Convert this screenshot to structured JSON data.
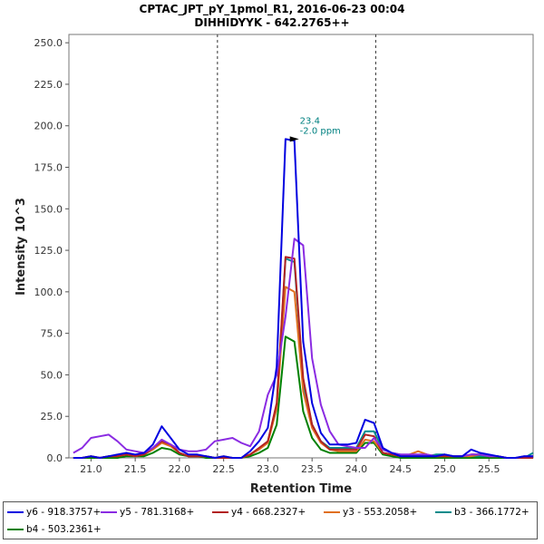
{
  "chart_data": {
    "type": "line",
    "title": "CPTAC_JPT_pY_1pmol_R1, 2016-06-23 00:04",
    "subtitle": "DIHHIDYYK - 642.2765++",
    "xlabel": "Retention Time",
    "ylabel": "Intensity 10^3",
    "xlim": [
      20.75,
      26.0
    ],
    "ylim": [
      0,
      255
    ],
    "x_ticks": [
      "21.0",
      "21.5",
      "22.0",
      "22.5",
      "23.0",
      "23.5",
      "24.0",
      "24.5",
      "25.0",
      "25.5"
    ],
    "y_ticks": [
      "0.0",
      "25.0",
      "50.0",
      "75.0",
      "100.0",
      "125.0",
      "150.0",
      "175.0",
      "200.0",
      "225.0",
      "250.0"
    ],
    "boundaries": [
      22.43,
      24.22
    ],
    "peak_annotation": {
      "x": 23.3,
      "y": 192,
      "label_rt": "23.4",
      "label_ppm": "-2.0 ppm"
    },
    "x": [
      20.8,
      20.9,
      21.0,
      21.1,
      21.2,
      21.3,
      21.4,
      21.5,
      21.6,
      21.7,
      21.8,
      21.9,
      22.0,
      22.1,
      22.2,
      22.3,
      22.4,
      22.5,
      22.6,
      22.7,
      22.8,
      22.9,
      23.0,
      23.1,
      23.2,
      23.3,
      23.4,
      23.5,
      23.6,
      23.7,
      23.8,
      23.9,
      24.0,
      24.1,
      24.2,
      24.3,
      24.4,
      24.5,
      24.6,
      24.7,
      24.8,
      24.9,
      25.0,
      25.1,
      25.2,
      25.3,
      25.4,
      25.5,
      25.6,
      25.7,
      25.8,
      25.9,
      26.0
    ],
    "series": [
      {
        "name": "y6 - 918.3757+",
        "color": "#0000e0",
        "values": [
          0,
          0,
          1,
          0,
          1,
          2,
          3,
          2,
          3,
          8,
          19,
          12,
          5,
          2,
          2,
          1,
          0,
          1,
          0,
          0,
          4,
          10,
          18,
          55,
          192,
          191,
          70,
          33,
          15,
          8,
          8,
          8,
          9,
          23,
          21,
          6,
          3,
          1,
          1,
          1,
          1,
          1,
          2,
          1,
          1,
          5,
          3,
          2,
          1,
          0,
          0,
          1,
          1
        ]
      },
      {
        "name": "y5 - 781.3168+",
        "color": "#8a2be2",
        "values": [
          3,
          6,
          12,
          13,
          14,
          10,
          5,
          4,
          3,
          6,
          11,
          8,
          5,
          4,
          4,
          5,
          10,
          11,
          12,
          9,
          7,
          16,
          38,
          50,
          85,
          132,
          128,
          60,
          32,
          16,
          8,
          7,
          6,
          6,
          12,
          5,
          3,
          2,
          2,
          2,
          2,
          1,
          2,
          1,
          1,
          2,
          2,
          1,
          1,
          0,
          0,
          1,
          1
        ]
      },
      {
        "name": "y4 - 668.2327+",
        "color": "#b22222",
        "values": [
          0,
          0,
          1,
          0,
          1,
          1,
          2,
          1,
          2,
          6,
          10,
          8,
          3,
          1,
          1,
          1,
          0,
          0,
          0,
          0,
          2,
          6,
          10,
          33,
          121,
          120,
          48,
          20,
          10,
          5,
          5,
          5,
          5,
          14,
          13,
          3,
          2,
          1,
          1,
          1,
          1,
          1,
          1,
          1,
          1,
          2,
          2,
          1,
          1,
          0,
          0,
          0,
          0
        ]
      },
      {
        "name": "y3 - 553.2058+",
        "color": "#e07020",
        "values": [
          0,
          0,
          1,
          0,
          1,
          1,
          2,
          1,
          2,
          5,
          9,
          7,
          3,
          1,
          1,
          1,
          0,
          1,
          0,
          0,
          2,
          5,
          9,
          30,
          103,
          100,
          40,
          18,
          9,
          5,
          4,
          4,
          4,
          11,
          10,
          3,
          2,
          1,
          2,
          4,
          2,
          1,
          1,
          1,
          1,
          1,
          2,
          1,
          1,
          0,
          0,
          0,
          0
        ]
      },
      {
        "name": "b3 - 366.1772+",
        "color": "#008b8b",
        "values": [
          0,
          0,
          1,
          0,
          1,
          1,
          2,
          1,
          2,
          5,
          10,
          8,
          3,
          1,
          1,
          1,
          0,
          0,
          0,
          0,
          2,
          5,
          10,
          30,
          120,
          118,
          45,
          20,
          10,
          6,
          6,
          6,
          6,
          16,
          16,
          5,
          3,
          2,
          1,
          1,
          1,
          2,
          2,
          1,
          1,
          1,
          1,
          1,
          1,
          0,
          0,
          0,
          3
        ]
      },
      {
        "name": "b4 - 503.2361+",
        "color": "#008000",
        "values": [
          0,
          0,
          0,
          0,
          0,
          0,
          1,
          1,
          1,
          3,
          6,
          5,
          2,
          1,
          1,
          0,
          0,
          0,
          0,
          0,
          1,
          3,
          6,
          20,
          73,
          70,
          28,
          12,
          5,
          3,
          3,
          3,
          3,
          9,
          9,
          2,
          1,
          0,
          0,
          0,
          0,
          0,
          0,
          0,
          0,
          0,
          0,
          0,
          0,
          0,
          0,
          0,
          0
        ]
      }
    ]
  }
}
